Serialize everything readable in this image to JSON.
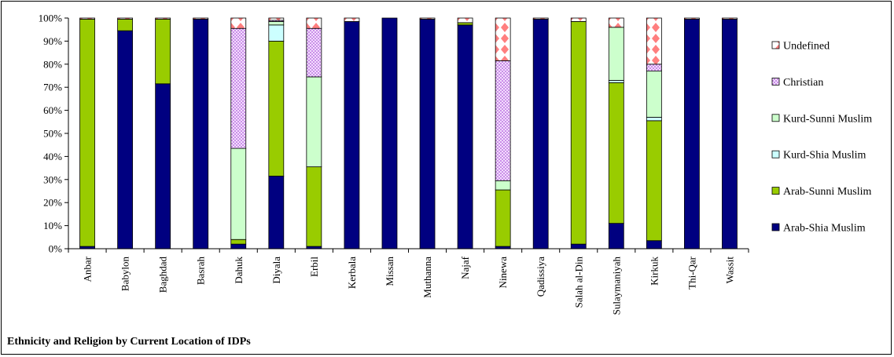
{
  "chart_data": {
    "type": "bar",
    "stacked": true,
    "title": "Ethnicity and Religion by Current Location of IDPs",
    "xlabel": "",
    "ylabel": "",
    "ylim": [
      0,
      100
    ],
    "y_ticks": [
      "0%",
      "10%",
      "20%",
      "30%",
      "40%",
      "50%",
      "60%",
      "70%",
      "80%",
      "90%",
      "100%"
    ],
    "legend_position": "right",
    "categories": [
      "Anbar",
      "Babylon",
      "Baghdad",
      "Basrah",
      "Dahuk",
      "Diyala",
      "Erbil",
      "Kerbala",
      "Missan",
      "Muthanna",
      "Najaf",
      "Ninewa",
      "Qadissiya",
      "Salah al-Din",
      "Sulaymaniyah",
      "Kirkuk",
      "Thi-Qar",
      "Wassit"
    ],
    "series": [
      {
        "name": "Arab-Shia Muslim",
        "color": "#000080",
        "pattern": "solid",
        "values": [
          1,
          94.5,
          71.5,
          99.5,
          2,
          31.5,
          1,
          98.5,
          100,
          99.5,
          97,
          1,
          99.5,
          2,
          11,
          3.5,
          99.5,
          99.5
        ]
      },
      {
        "name": "Arab-Sunni Muslim",
        "color": "#99cc00",
        "pattern": "solid",
        "values": [
          98.5,
          5,
          28,
          0,
          2,
          58.5,
          34.5,
          0,
          0,
          0,
          1,
          24.5,
          0,
          96.5,
          61,
          52,
          0,
          0
        ]
      },
      {
        "name": "Kurd-Shia Muslim",
        "color": "#ccffff",
        "pattern": "solid",
        "values": [
          0,
          0,
          0,
          0,
          0,
          7,
          0,
          0,
          0,
          0,
          0,
          0,
          0,
          0,
          1,
          1.5,
          0,
          0
        ]
      },
      {
        "name": "Kurd-Sunni Muslim",
        "color": "#ccffcc",
        "pattern": "solid",
        "values": [
          0,
          0,
          0,
          0,
          39.5,
          1.5,
          39,
          0,
          0,
          0,
          0,
          4,
          0,
          0,
          23,
          20,
          0,
          0
        ]
      },
      {
        "name": "Christian",
        "color": "#cc99ff",
        "pattern": "dots",
        "values": [
          0,
          0,
          0,
          0,
          52,
          0.5,
          21,
          0,
          0,
          0,
          0,
          52,
          0,
          0,
          0,
          3,
          0,
          0
        ]
      },
      {
        "name": "Undefined",
        "color": "#ff9999",
        "pattern": "diamonds",
        "values": [
          0.5,
          0.5,
          0.5,
          0.5,
          4.5,
          1,
          4.5,
          1.5,
          0,
          0.5,
          2,
          18.5,
          0.5,
          1.5,
          4,
          20,
          0.5,
          0.5
        ]
      }
    ]
  }
}
